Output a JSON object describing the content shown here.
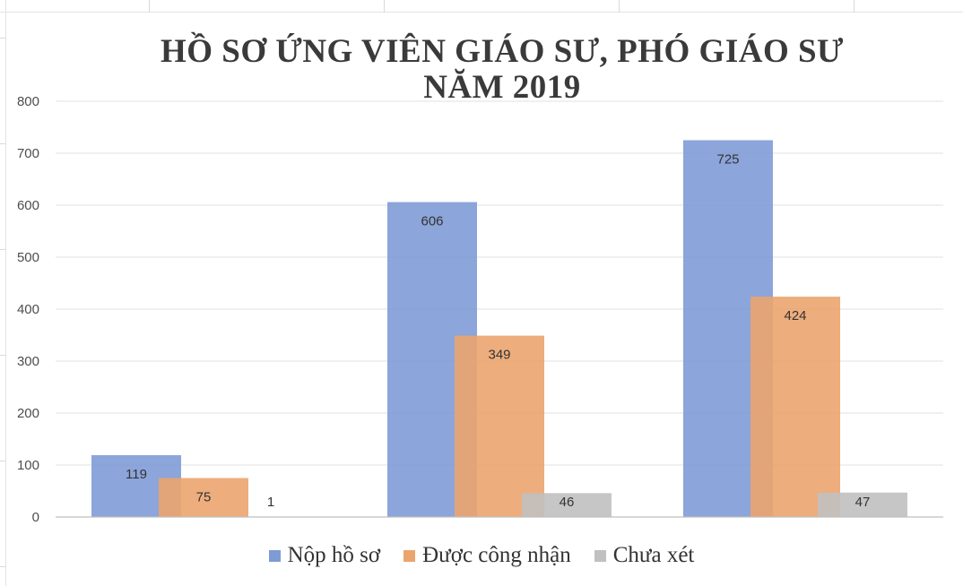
{
  "chart_data": {
    "type": "bar",
    "title_lines": [
      "HỒ SƠ ỨNG VIÊN GIÁO SƯ, PHÓ GIÁO SƯ",
      "NĂM 2019"
    ],
    "categories": [
      "",
      "",
      ""
    ],
    "series": [
      {
        "name": "Nộp hồ sơ",
        "color": "#7f9bd6",
        "values": [
          119,
          606,
          725
        ]
      },
      {
        "name": "Được công nhận",
        "color": "#eba46e",
        "values": [
          75,
          349,
          424
        ]
      },
      {
        "name": "Chưa xét",
        "color": "#c0c0c0",
        "values": [
          1,
          46,
          47
        ]
      }
    ],
    "ylim": [
      0,
      800
    ],
    "yticks": [
      "0",
      "100",
      "200",
      "300",
      "400",
      "500",
      "600",
      "700",
      "800"
    ],
    "grid": true,
    "legend_position": "bottom",
    "bars_overlap": true
  }
}
